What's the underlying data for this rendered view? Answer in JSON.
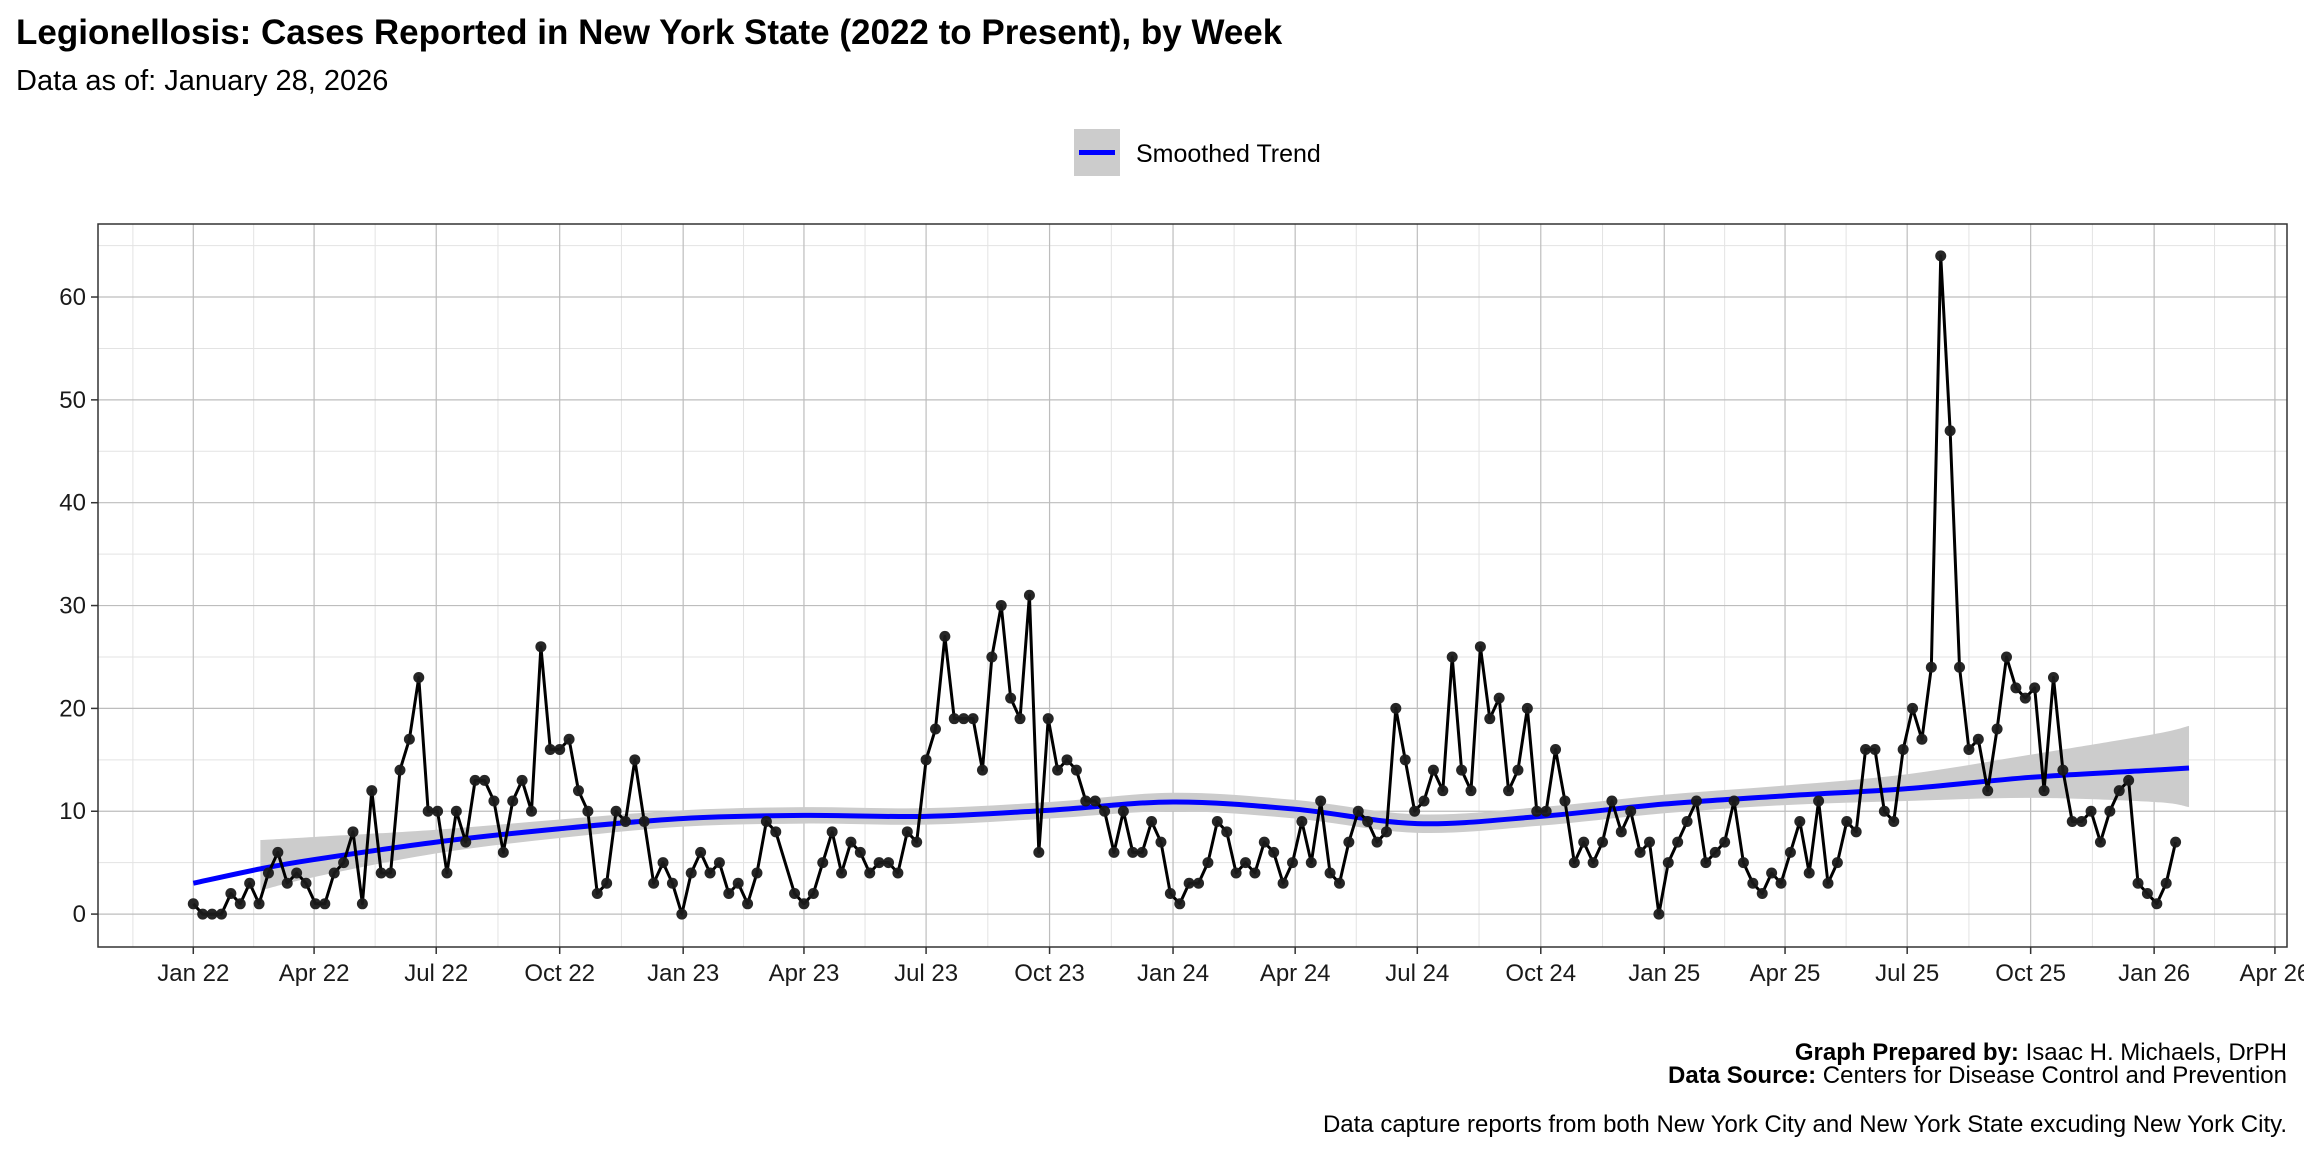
{
  "chart_data": {
    "type": "line",
    "title": "Legionellosis: Cases Reported in New York State (2022 to Present), by Week",
    "subtitle": "Data as of: January 28, 2026",
    "xlabel": "",
    "ylabel": "",
    "start_date": "2022-01-01",
    "interval_days": 7,
    "xlim": [
      "2021-10-22",
      "2026-04-10"
    ],
    "ylim": [
      -3.2,
      67.1
    ],
    "grid": true,
    "x_ticks": [
      {
        "date": "2022-01-01",
        "label": "Jan 22"
      },
      {
        "date": "2022-04-01",
        "label": "Apr 22"
      },
      {
        "date": "2022-07-01",
        "label": "Jul 22"
      },
      {
        "date": "2022-10-01",
        "label": "Oct 22"
      },
      {
        "date": "2023-01-01",
        "label": "Jan 23"
      },
      {
        "date": "2023-04-01",
        "label": "Apr 23"
      },
      {
        "date": "2023-07-01",
        "label": "Jul 23"
      },
      {
        "date": "2023-10-01",
        "label": "Oct 23"
      },
      {
        "date": "2024-01-01",
        "label": "Jan 24"
      },
      {
        "date": "2024-04-01",
        "label": "Apr 24"
      },
      {
        "date": "2024-07-01",
        "label": "Jul 24"
      },
      {
        "date": "2024-10-01",
        "label": "Oct 24"
      },
      {
        "date": "2025-01-01",
        "label": "Jan 25"
      },
      {
        "date": "2025-04-01",
        "label": "Apr 25"
      },
      {
        "date": "2025-07-01",
        "label": "Jul 25"
      },
      {
        "date": "2025-10-01",
        "label": "Oct 25"
      },
      {
        "date": "2026-01-01",
        "label": "Jan 26"
      },
      {
        "date": "2026-04-01",
        "label": "Apr 26"
      }
    ],
    "y_ticks": [
      0,
      10,
      20,
      30,
      40,
      50,
      60
    ],
    "legend": {
      "position": "top-center",
      "entries": [
        "Smoothed Trend"
      ]
    },
    "series": [
      {
        "name": "Weekly cases",
        "color": "#000000",
        "values": [
          1,
          0,
          0,
          0,
          2,
          1,
          3,
          1,
          4,
          6,
          3,
          4,
          3,
          1,
          1,
          4,
          5,
          8,
          1,
          12,
          4,
          4,
          14,
          17,
          23,
          10,
          10,
          4,
          10,
          7,
          13,
          13,
          11,
          6,
          11,
          13,
          10,
          26,
          16,
          16,
          17,
          12,
          10,
          2,
          3,
          10,
          9,
          15,
          9,
          3,
          5,
          3,
          0,
          4,
          6,
          4,
          5,
          2,
          3,
          1,
          4,
          9,
          8,
          null,
          2,
          1,
          2,
          5,
          8,
          4,
          7,
          6,
          4,
          5,
          5,
          4,
          8,
          7,
          15,
          18,
          27,
          19,
          19,
          19,
          14,
          25,
          30,
          21,
          19,
          31,
          6,
          19,
          14,
          15,
          14,
          11,
          11,
          10,
          6,
          10,
          6,
          6,
          9,
          7,
          2,
          1,
          3,
          3,
          5,
          9,
          8,
          4,
          5,
          4,
          7,
          6,
          3,
          5,
          9,
          5,
          11,
          4,
          3,
          7,
          10,
          9,
          7,
          8,
          20,
          15,
          10,
          11,
          14,
          12,
          25,
          14,
          12,
          26,
          19,
          21,
          12,
          14,
          20,
          10,
          10,
          16,
          11,
          5,
          7,
          5,
          7,
          11,
          8,
          10,
          6,
          7,
          0,
          5,
          7,
          9,
          11,
          5,
          6,
          7,
          11,
          5,
          3,
          2,
          4,
          3,
          6,
          9,
          4,
          11,
          3,
          5,
          9,
          8,
          16,
          16,
          10,
          9,
          16,
          20,
          17,
          24,
          64,
          47,
          24,
          16,
          17,
          12,
          18,
          25,
          22,
          21,
          22,
          12,
          23,
          14,
          9,
          9,
          10,
          7,
          10,
          12,
          13,
          3,
          2,
          1,
          3,
          7
        ]
      },
      {
        "name": "Smoothed Trend",
        "color": "#0000ff",
        "band_color": "#cccccc",
        "points": [
          {
            "date": "2022-01-01",
            "y": 3.0
          },
          {
            "date": "2022-02-20",
            "y": 4.4,
            "lower": 2.3,
            "upper": 7.2
          },
          {
            "date": "2022-04-01",
            "y": 5.3,
            "lower": 3.6,
            "upper": 7.5
          },
          {
            "date": "2022-07-01",
            "y": 7.0,
            "lower": 5.9,
            "upper": 8.2
          },
          {
            "date": "2022-10-01",
            "y": 8.3,
            "lower": 7.4,
            "upper": 9.2
          },
          {
            "date": "2023-01-01",
            "y": 9.3,
            "lower": 8.5,
            "upper": 10.1
          },
          {
            "date": "2023-04-01",
            "y": 9.6,
            "lower": 8.8,
            "upper": 10.4
          },
          {
            "date": "2023-07-01",
            "y": 9.5,
            "lower": 8.7,
            "upper": 10.3
          },
          {
            "date": "2023-10-01",
            "y": 10.1,
            "lower": 9.3,
            "upper": 10.9
          },
          {
            "date": "2024-01-01",
            "y": 10.9,
            "lower": 10.0,
            "upper": 11.8
          },
          {
            "date": "2024-04-01",
            "y": 10.2,
            "lower": 9.3,
            "upper": 11.1
          },
          {
            "date": "2024-07-01",
            "y": 8.8,
            "lower": 7.9,
            "upper": 9.7
          },
          {
            "date": "2024-10-01",
            "y": 9.5,
            "lower": 8.6,
            "upper": 10.4
          },
          {
            "date": "2025-01-01",
            "y": 10.7,
            "lower": 9.8,
            "upper": 11.6
          },
          {
            "date": "2025-04-01",
            "y": 11.5,
            "lower": 10.6,
            "upper": 12.5
          },
          {
            "date": "2025-07-01",
            "y": 12.2,
            "lower": 11.0,
            "upper": 13.6
          },
          {
            "date": "2025-10-01",
            "y": 13.3,
            "lower": 11.3,
            "upper": 15.5
          },
          {
            "date": "2026-01-01",
            "y": 14.0,
            "lower": 10.9,
            "upper": 17.5
          },
          {
            "date": "2026-01-27",
            "y": 14.2,
            "lower": 10.4,
            "upper": 18.3
          }
        ]
      }
    ]
  },
  "footer": {
    "prepared_label": "Graph Prepared by:",
    "prepared_value": " Isaac H. Michaels, DrPH",
    "source_label": "Data Source:",
    "source_value": " Centers for Disease Control and Prevention",
    "note": "Data capture reports from both New York City and New York State excuding New York City."
  }
}
